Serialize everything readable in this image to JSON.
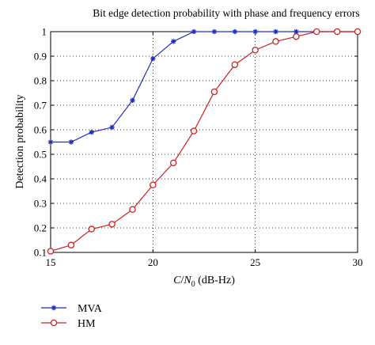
{
  "chart_data": {
    "type": "line",
    "title": "Bit edge detection probability with phase and frequency errors",
    "xlabel_main": "C",
    "xlabel_slash": "/",
    "xlabel_N": "N",
    "xlabel_sub": "0",
    "xlabel_unit": " (dB-Hz)",
    "ylabel": "Detection probability",
    "xlim": [
      15,
      30
    ],
    "ylim": [
      0.1,
      1
    ],
    "xticks": [
      "15",
      "20",
      "25",
      "30"
    ],
    "yticks": [
      "0.1",
      "0.2",
      "0.3",
      "0.4",
      "0.5",
      "0.6",
      "0.7",
      "0.8",
      "0.9",
      "1"
    ],
    "grid": "dotted",
    "legend_position": "bottom-left, below plot",
    "x": [
      15,
      16,
      17,
      18,
      19,
      20,
      21,
      22,
      23,
      24,
      25,
      26,
      27,
      28,
      29,
      30
    ],
    "series": [
      {
        "name": "MVA",
        "color": "#1f2fbf",
        "marker": "star",
        "values": [
          0.55,
          0.55,
          0.59,
          0.61,
          0.72,
          0.89,
          0.96,
          1.0,
          1.0,
          1.0,
          1.0,
          1.0,
          1.0,
          1.0,
          1.0,
          1.0
        ]
      },
      {
        "name": "HM",
        "color": "#cc2222",
        "marker": "circle",
        "values": [
          0.105,
          0.13,
          0.195,
          0.215,
          0.275,
          0.375,
          0.465,
          0.595,
          0.755,
          0.865,
          0.925,
          0.96,
          0.98,
          1.0,
          1.0,
          1.0
        ]
      }
    ]
  }
}
